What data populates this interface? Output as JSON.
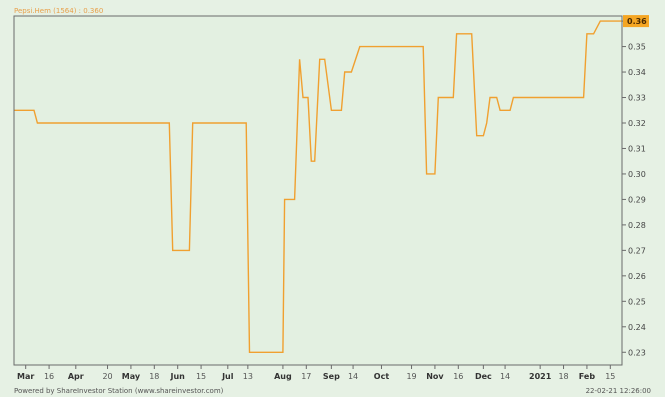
{
  "legend": "Pepsi.Hem (1564) : 0.360",
  "footer_left": "Powered by ShareInvestor Station (www.shareinvestor.com)",
  "footer_right": "22-02-21 12:26:00",
  "colors": {
    "line": "#f0a030",
    "background": "#e3f0e1",
    "last_price_box": "#f5a623"
  },
  "chart_data": {
    "type": "line",
    "ylim": [
      0.225,
      0.362
    ],
    "y_ticks": [
      0.23,
      0.24,
      0.25,
      0.26,
      0.27,
      0.28,
      0.29,
      0.3,
      0.31,
      0.32,
      0.33,
      0.34,
      0.35,
      0.36
    ],
    "y_tick_labels": [
      "0.23",
      "0.24",
      "0.25",
      "0.26",
      "0.27",
      "0.28",
      "0.29",
      "0.30",
      "0.31",
      "0.32",
      "0.33",
      "0.34",
      "0.35",
      "0.36"
    ],
    "xlim": [
      "2020-02-24",
      "2021-02-22"
    ],
    "x_ticks": [
      {
        "date": "2020-03-02",
        "label": "Mar",
        "major": true
      },
      {
        "date": "2020-03-16",
        "label": "16",
        "major": false
      },
      {
        "date": "2020-04-01",
        "label": "Apr",
        "major": true
      },
      {
        "date": "2020-04-20",
        "label": "20",
        "major": false
      },
      {
        "date": "2020-05-04",
        "label": "May",
        "major": true
      },
      {
        "date": "2020-05-18",
        "label": "18",
        "major": false
      },
      {
        "date": "2020-06-01",
        "label": "Jun",
        "major": true
      },
      {
        "date": "2020-06-15",
        "label": "15",
        "major": false
      },
      {
        "date": "2020-07-01",
        "label": "Jul",
        "major": true
      },
      {
        "date": "2020-07-13",
        "label": "13",
        "major": false
      },
      {
        "date": "2020-08-03",
        "label": "Aug",
        "major": true
      },
      {
        "date": "2020-08-17",
        "label": "17",
        "major": false
      },
      {
        "date": "2020-09-01",
        "label": "Sep",
        "major": true
      },
      {
        "date": "2020-09-14",
        "label": "14",
        "major": false
      },
      {
        "date": "2020-10-01",
        "label": "Oct",
        "major": true
      },
      {
        "date": "2020-10-19",
        "label": "19",
        "major": false
      },
      {
        "date": "2020-11-02",
        "label": "Nov",
        "major": true
      },
      {
        "date": "2020-11-16",
        "label": "16",
        "major": false
      },
      {
        "date": "2020-12-01",
        "label": "Dec",
        "major": true
      },
      {
        "date": "2020-12-14",
        "label": "14",
        "major": false
      },
      {
        "date": "2021-01-04",
        "label": "2021",
        "major": true
      },
      {
        "date": "2021-01-18",
        "label": "18",
        "major": false
      },
      {
        "date": "2021-02-01",
        "label": "Feb",
        "major": true
      },
      {
        "date": "2021-02-15",
        "label": "15",
        "major": false
      }
    ],
    "series": [
      {
        "name": "Pepsi.Hem (1564)",
        "points": [
          [
            "2020-02-24",
            0.325
          ],
          [
            "2020-03-07",
            0.325
          ],
          [
            "2020-03-09",
            0.32
          ],
          [
            "2020-05-27",
            0.32
          ],
          [
            "2020-05-29",
            0.27
          ],
          [
            "2020-06-08",
            0.27
          ],
          [
            "2020-06-10",
            0.32
          ],
          [
            "2020-07-12",
            0.32
          ],
          [
            "2020-07-14",
            0.23
          ],
          [
            "2020-08-03",
            0.23
          ],
          [
            "2020-08-04",
            0.29
          ],
          [
            "2020-08-10",
            0.29
          ],
          [
            "2020-08-13",
            0.345
          ],
          [
            "2020-08-15",
            0.33
          ],
          [
            "2020-08-18",
            0.33
          ],
          [
            "2020-08-20",
            0.305
          ],
          [
            "2020-08-22",
            0.305
          ],
          [
            "2020-08-25",
            0.345
          ],
          [
            "2020-08-28",
            0.345
          ],
          [
            "2020-09-01",
            0.325
          ],
          [
            "2020-09-07",
            0.325
          ],
          [
            "2020-09-09",
            0.34
          ],
          [
            "2020-09-13",
            0.34
          ],
          [
            "2020-09-18",
            0.35
          ],
          [
            "2020-10-26",
            0.35
          ],
          [
            "2020-10-28",
            0.3
          ],
          [
            "2020-11-02",
            0.3
          ],
          [
            "2020-11-04",
            0.33
          ],
          [
            "2020-11-13",
            0.33
          ],
          [
            "2020-11-15",
            0.355
          ],
          [
            "2020-11-24",
            0.355
          ],
          [
            "2020-11-27",
            0.315
          ],
          [
            "2020-12-01",
            0.315
          ],
          [
            "2020-12-03",
            0.32
          ],
          [
            "2020-12-05",
            0.33
          ],
          [
            "2020-12-09",
            0.33
          ],
          [
            "2020-12-11",
            0.325
          ],
          [
            "2020-12-17",
            0.325
          ],
          [
            "2020-12-19",
            0.33
          ],
          [
            "2021-01-30",
            0.33
          ],
          [
            "2021-02-01",
            0.355
          ],
          [
            "2021-02-05",
            0.355
          ],
          [
            "2021-02-09",
            0.36
          ],
          [
            "2021-02-22",
            0.36
          ]
        ],
        "last_value_label": "0.36"
      }
    ]
  }
}
